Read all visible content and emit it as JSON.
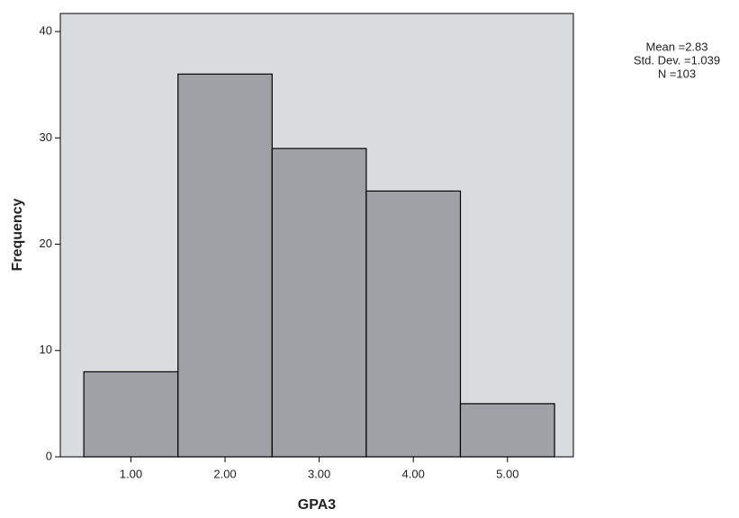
{
  "chart_data": {
    "type": "histogram",
    "bins": [
      0.5,
      1.5,
      2.5,
      3.5,
      4.5,
      5.5
    ],
    "values": [
      8,
      36,
      29,
      25,
      5
    ],
    "color": "#9ea2a7",
    "xlabel": "GPA3",
    "ylabel": "Frequency",
    "xlim": [
      0.25,
      5.7
    ],
    "ylim": [
      0,
      41.7
    ],
    "xticks": [
      {
        "value": 1,
        "label": "1.00"
      },
      {
        "value": 2,
        "label": "2.00"
      },
      {
        "value": 3,
        "label": "3.00"
      },
      {
        "value": 4,
        "label": "4.00"
      },
      {
        "value": 5,
        "label": "5.00"
      }
    ],
    "yticks": [
      0,
      10,
      20,
      30,
      40
    ],
    "annotations": [
      "Mean =2.83",
      "Std. Dev. =1.039",
      "N =103"
    ]
  }
}
